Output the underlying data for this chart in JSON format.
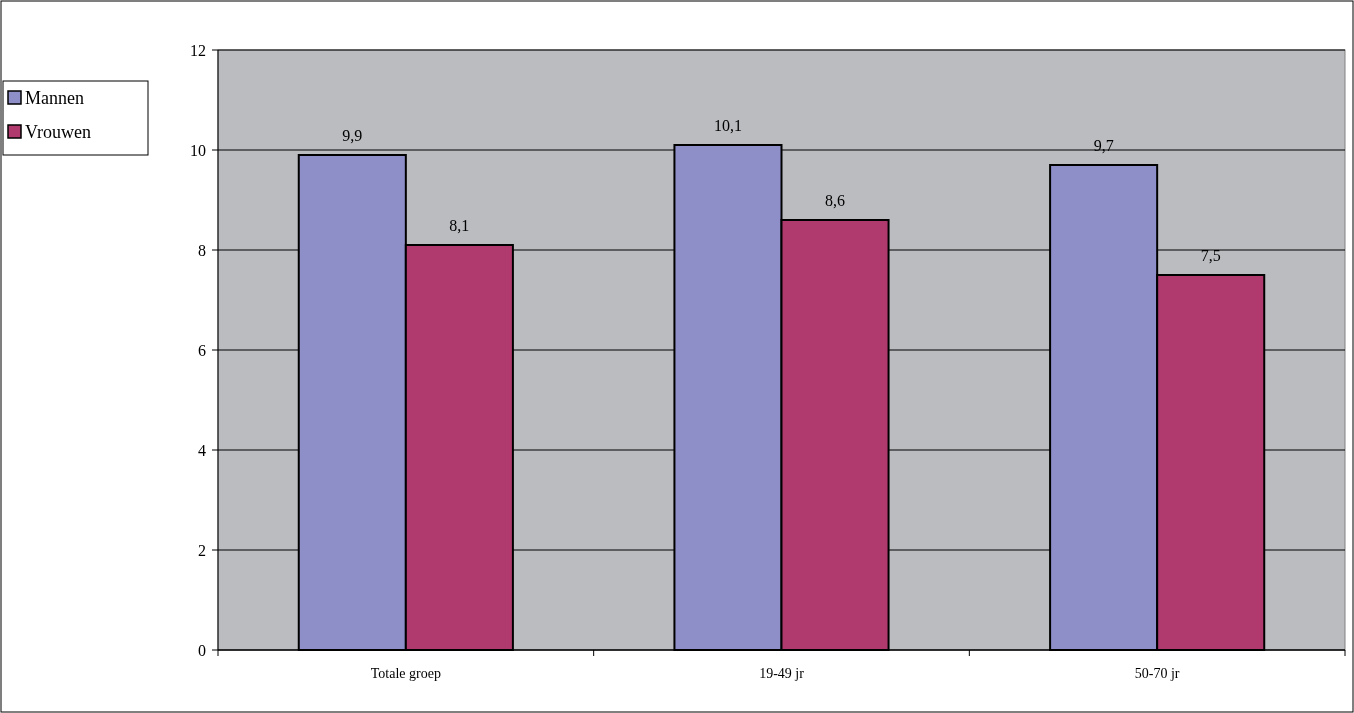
{
  "chart_data": {
    "type": "bar",
    "categories": [
      "Totale groep",
      "19-49 jr",
      "50-70 jr"
    ],
    "series": [
      {
        "name": "Mannen",
        "color": "#8e8fc8",
        "values": [
          9.9,
          10.1,
          9.7
        ],
        "value_labels": [
          "9,9",
          "10,1",
          "9,7"
        ]
      },
      {
        "name": "Vrouwen",
        "color": "#b03a6e",
        "values": [
          8.1,
          8.6,
          7.5
        ],
        "value_labels": [
          "8,1",
          "8,6",
          "7,5"
        ]
      }
    ],
    "ylim": [
      0,
      12
    ],
    "yticks": [
      0,
      2,
      4,
      6,
      8,
      10,
      12
    ],
    "grid": "y",
    "legend": "left"
  }
}
